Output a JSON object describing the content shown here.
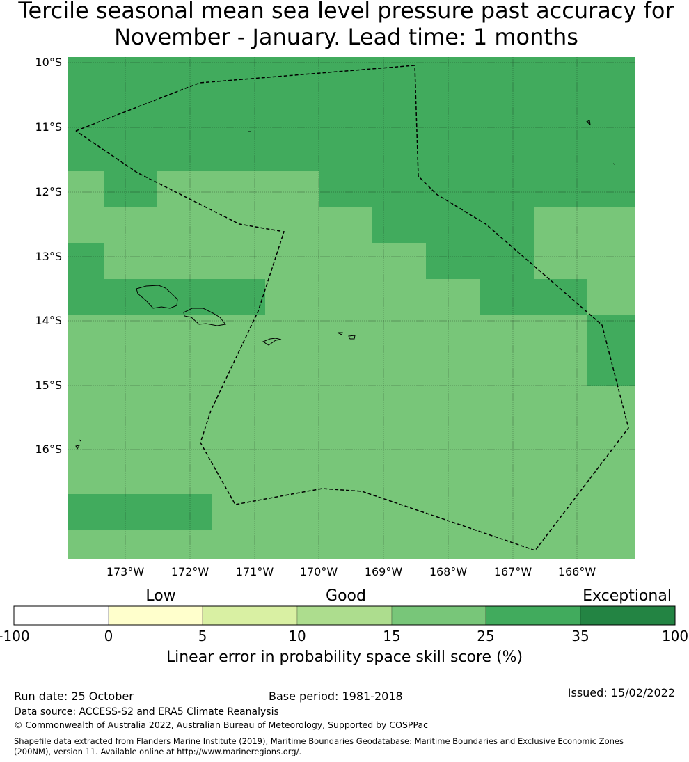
{
  "title": "Tercile seasonal mean sea level pressure past accuracy for November - January. Lead time: 1 months",
  "lat_labels": [
    "10°S",
    "11°S",
    "12°S",
    "13°S",
    "14°S",
    "15°S",
    "16°S"
  ],
  "lon_labels": [
    "173°W",
    "172°W",
    "171°W",
    "170°W",
    "169°W",
    "168°W",
    "167°W",
    "166°W"
  ],
  "colors": {
    "light_green": "#78c679",
    "green": "#41ab5d"
  },
  "colorbar": {
    "category_labels": [
      "Low",
      "Good",
      "Exceptional"
    ],
    "ticks": [
      "-100",
      "0",
      "5",
      "10",
      "15",
      "25",
      "35",
      "100"
    ],
    "colors": [
      "#ffffff",
      "#ffffcc",
      "#d9f0a3",
      "#addd8e",
      "#78c679",
      "#41ab5d",
      "#238443"
    ],
    "label": "Linear error in probability space skill score (%)"
  },
  "footer": {
    "run_date": "Run date: 25 October",
    "base_period": "Base period: 1981-2018",
    "issued": "Issued: 15/02/2022",
    "data_source": "Data source: ACCESS-S2 and ERA5 Climate Reanalysis",
    "copyright": "© Commonwealth of Australia 2022, Australian Bureau of Meteorology, Supported by COSPPac",
    "shapefile_line1": "Shapefile data extracted from Flanders Marine Institute (2019), Maritime Boundaries Geodatabase: Maritime Boundaries and Exclusive Economic Zones",
    "shapefile_line2": "(200NM), version 11. Available online at http://www.marineregions.org/."
  }
}
